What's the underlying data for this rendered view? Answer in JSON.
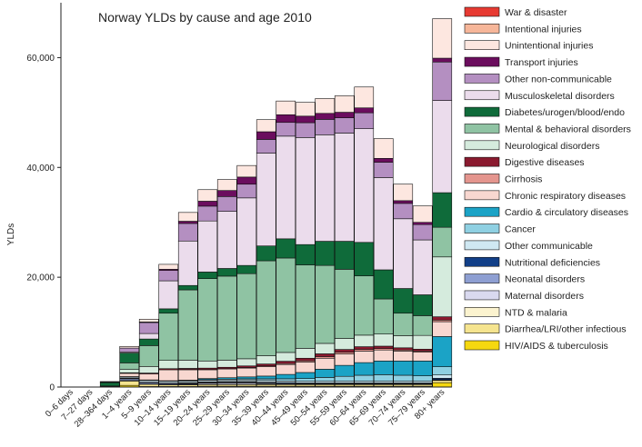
{
  "chart_data": {
    "type": "bar",
    "stacked": true,
    "title": "Norway YLDs by cause and age 2010",
    "xlabel": "",
    "ylabel": "YLDs",
    "ylim": [
      0,
      70000
    ],
    "yticks": [
      0,
      20000,
      40000,
      60000
    ],
    "ytick_labels": [
      "0",
      "20,000",
      "40,000",
      "60,000"
    ],
    "grid": false,
    "legend_position": "right",
    "categories": [
      "0–6 days",
      "7–27 days",
      "28–364 days",
      "1–4 years",
      "5–9 years",
      "10–14 years",
      "15–19 years",
      "20–24 years",
      "25–29 years",
      "30–34 years",
      "35–39 years",
      "40–44 years",
      "45–49 years",
      "50–54 years",
      "55–59 years",
      "60–64 years",
      "65–69 years",
      "70–74 years",
      "75–79 years",
      "80+ years"
    ],
    "series": [
      {
        "name": "HIV/AIDS & tuberculosis",
        "color": "#f5d80f",
        "values": [
          0,
          0,
          0,
          300,
          100,
          100,
          100,
          150,
          150,
          150,
          150,
          150,
          150,
          150,
          150,
          150,
          150,
          150,
          150,
          800
        ]
      },
      {
        "name": "Diarrhea/LRI/other infectious",
        "color": "#f5e48f",
        "values": [
          0,
          0,
          100,
          800,
          400,
          300,
          300,
          300,
          300,
          300,
          300,
          300,
          300,
          300,
          300,
          300,
          300,
          300,
          300,
          400
        ]
      },
      {
        "name": "NTD & malaria",
        "color": "#fbf3cf",
        "values": [
          0,
          0,
          0,
          100,
          50,
          50,
          50,
          50,
          50,
          50,
          50,
          50,
          50,
          50,
          50,
          50,
          50,
          50,
          50,
          50
        ]
      },
      {
        "name": "Maternal disorders",
        "color": "#d9d9ef",
        "values": [
          0,
          0,
          0,
          0,
          0,
          0,
          100,
          200,
          250,
          250,
          150,
          0,
          0,
          0,
          0,
          0,
          0,
          0,
          0,
          0
        ]
      },
      {
        "name": "Neonatal disorders",
        "color": "#8e9fd2",
        "values": [
          0,
          0,
          0,
          300,
          250,
          200,
          150,
          150,
          150,
          150,
          150,
          150,
          100,
          100,
          100,
          100,
          100,
          100,
          100,
          100
        ]
      },
      {
        "name": "Nutritional deficiencies",
        "color": "#123f88",
        "values": [
          0,
          0,
          0,
          100,
          100,
          100,
          100,
          100,
          100,
          100,
          100,
          150,
          150,
          150,
          150,
          150,
          150,
          150,
          150,
          250
        ]
      },
      {
        "name": "Other communicable",
        "color": "#cfe8f2",
        "values": [
          0,
          0,
          0,
          200,
          300,
          300,
          300,
          300,
          300,
          300,
          300,
          300,
          300,
          300,
          300,
          300,
          300,
          300,
          300,
          600
        ]
      },
      {
        "name": "Cancer",
        "color": "#8fd0e2",
        "values": [
          0,
          0,
          0,
          50,
          50,
          50,
          50,
          100,
          150,
          200,
          300,
          400,
          500,
          700,
          900,
          1100,
          1200,
          1100,
          1000,
          1500
        ]
      },
      {
        "name": "Cardio & circulatory diseases",
        "color": "#1ba3c6",
        "values": [
          0,
          0,
          0,
          50,
          50,
          50,
          100,
          200,
          250,
          350,
          500,
          800,
          1100,
          1500,
          2000,
          2300,
          2500,
          2600,
          2700,
          5500
        ]
      },
      {
        "name": "Chronic respiratory diseases",
        "color": "#f8d7d0",
        "values": [
          0,
          0,
          0,
          600,
          1100,
          2000,
          1900,
          1600,
          1600,
          1600,
          1700,
          1800,
          1900,
          2000,
          2100,
          2100,
          2000,
          1800,
          1600,
          2700
        ]
      },
      {
        "name": "Cirrhosis",
        "color": "#e4958e",
        "values": [
          0,
          0,
          0,
          0,
          0,
          0,
          50,
          50,
          50,
          100,
          150,
          200,
          250,
          300,
          300,
          300,
          250,
          200,
          200,
          300
        ]
      },
      {
        "name": "Digestive diseases",
        "color": "#8a1a2f",
        "values": [
          0,
          0,
          0,
          100,
          150,
          200,
          200,
          250,
          250,
          300,
          350,
          400,
          450,
          500,
          500,
          500,
          450,
          400,
          350,
          600
        ]
      },
      {
        "name": "Neurological disorders",
        "color": "#d5ebdd",
        "values": [
          0,
          0,
          100,
          600,
          1200,
          1500,
          1500,
          1300,
          1300,
          1300,
          1500,
          1600,
          1800,
          1900,
          2000,
          2100,
          2200,
          2200,
          2500,
          10900
        ]
      },
      {
        "name": "Mental & behavioral disorders",
        "color": "#8fc3a3",
        "values": [
          0,
          0,
          0,
          1200,
          3800,
          8600,
          12800,
          15000,
          15300,
          15500,
          17300,
          17200,
          15200,
          14200,
          12600,
          10800,
          6400,
          4100,
          3600,
          5400
        ]
      },
      {
        "name": "Diabetes/urogen/blood/endo",
        "color": "#0f6b3a",
        "values": [
          0,
          0,
          600,
          1800,
          1200,
          800,
          800,
          1200,
          1400,
          1500,
          2700,
          3500,
          3700,
          4400,
          5100,
          6100,
          5300,
          4500,
          3800,
          6300
        ]
      },
      {
        "name": "Musculoskeletal disorders",
        "color": "#ebdcec",
        "values": [
          0,
          0,
          100,
          200,
          1000,
          5100,
          8100,
          9300,
          10400,
          12300,
          16900,
          18700,
          19500,
          19400,
          19700,
          20700,
          16800,
          12700,
          10000,
          16800
        ]
      },
      {
        "name": "Other non-communicable",
        "color": "#b48fc1",
        "values": [
          0,
          0,
          100,
          700,
          2000,
          1900,
          3200,
          2700,
          2700,
          2500,
          2500,
          2500,
          2700,
          2800,
          2800,
          2900,
          2800,
          2800,
          2800,
          7000
        ]
      },
      {
        "name": "Transport injuries",
        "color": "#6b0d5e",
        "values": [
          0,
          0,
          0,
          0,
          100,
          200,
          400,
          900,
          1100,
          1300,
          1400,
          1400,
          1200,
          1100,
          1000,
          900,
          700,
          500,
          400,
          700
        ]
      },
      {
        "name": "Unintentional injuries",
        "color": "#fde7e0",
        "values": [
          0,
          0,
          0,
          300,
          500,
          900,
          1600,
          2100,
          2000,
          2100,
          2200,
          2500,
          2500,
          2700,
          3000,
          3800,
          3600,
          3000,
          3000,
          7200
        ]
      },
      {
        "name": "Intentional injuries",
        "color": "#f6b699",
        "values": [
          0,
          0,
          0,
          0,
          0,
          0,
          0,
          0,
          0,
          0,
          0,
          0,
          0,
          0,
          0,
          0,
          0,
          0,
          0,
          0
        ]
      },
      {
        "name": "War & disaster",
        "color": "#e73a32",
        "values": [
          0,
          0,
          0,
          0,
          0,
          0,
          0,
          0,
          0,
          0,
          0,
          0,
          0,
          0,
          0,
          0,
          0,
          0,
          0,
          0
        ]
      }
    ]
  }
}
